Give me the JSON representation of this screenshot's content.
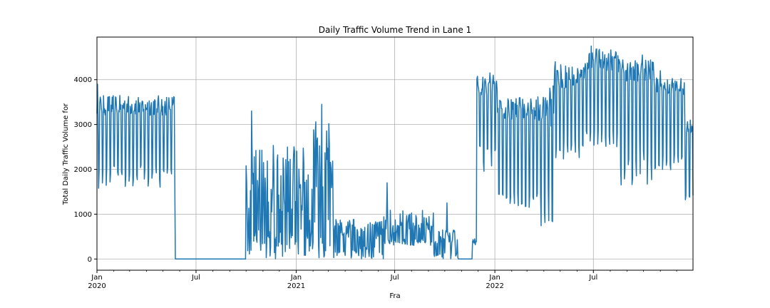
{
  "chart_data": {
    "type": "line",
    "title": "Daily Traffic Volume Trend in Lane 1",
    "xlabel": "Fra",
    "ylabel": "Total Daily Traffic Volume for",
    "xlim": [
      "2020-01-01",
      "2022-12-31"
    ],
    "ylim": [
      -250,
      4950
    ],
    "grid": true,
    "x_ticks": [
      {
        "date": "2020-01-01",
        "line1": "Jan",
        "line2": "2020"
      },
      {
        "date": "2020-07-01",
        "line1": "Jul",
        "line2": ""
      },
      {
        "date": "2021-01-01",
        "line1": "Jan",
        "line2": "2021"
      },
      {
        "date": "2021-07-01",
        "line1": "Jul",
        "line2": ""
      },
      {
        "date": "2022-01-01",
        "line1": "Jan",
        "line2": "2022"
      },
      {
        "date": "2022-07-01",
        "line1": "Jul",
        "line2": ""
      }
    ],
    "y_ticks": [
      0,
      1000,
      2000,
      3000,
      4000
    ],
    "series": [
      {
        "color": "#1f77b4",
        "segments": [
          {
            "start": "2020-01-01",
            "end": "2020-05-23",
            "mode": "weekly",
            "high": [
              3200,
              3650
            ],
            "low": [
              1550,
              2100
            ],
            "peak": 3900
          },
          {
            "start": "2020-05-24",
            "end": "2020-09-30",
            "mode": "flat",
            "value": 0
          },
          {
            "start": "2020-10-01",
            "end": "2021-01-20",
            "mode": "noisy",
            "high": [
              1000,
              2600
            ],
            "low": [
              0,
              700
            ],
            "peak": 3300
          },
          {
            "start": "2021-01-21",
            "end": "2021-03-10",
            "mode": "noisy",
            "high": [
              1500,
              3100
            ],
            "low": [
              0,
              900
            ],
            "peak": 3450
          },
          {
            "start": "2021-03-11",
            "end": "2021-06-10",
            "mode": "noisy",
            "high": [
              450,
              900
            ],
            "low": [
              0,
              300
            ],
            "peak": 2700
          },
          {
            "start": "2021-06-11",
            "end": "2021-09-10",
            "mode": "noisy",
            "high": [
              550,
              1100
            ],
            "low": [
              300,
              450
            ],
            "peak": 1700
          },
          {
            "start": "2021-09-11",
            "end": "2021-10-25",
            "mode": "noisy",
            "high": [
              350,
              650
            ],
            "low": [
              0,
              150
            ],
            "peak": 1250
          },
          {
            "start": "2021-10-26",
            "end": "2021-11-20",
            "mode": "flat",
            "value": 0
          },
          {
            "start": "2021-11-21",
            "end": "2021-11-28",
            "mode": "noisy",
            "high": [
              350,
              450
            ],
            "low": [
              300,
              400
            ],
            "peak": 450
          },
          {
            "start": "2021-11-29",
            "end": "2022-01-05",
            "mode": "weekly",
            "high": [
              3650,
              4100
            ],
            "low": [
              1900,
              2600
            ],
            "peak": 4150
          },
          {
            "start": "2022-01-06",
            "end": "2022-03-20",
            "mode": "weekly",
            "high": [
              3100,
              3600
            ],
            "low": [
              1150,
              1500
            ],
            "peak": 3600
          },
          {
            "start": "2022-03-21",
            "end": "2022-04-20",
            "mode": "weekly",
            "high": [
              2900,
              3900
            ],
            "low": [
              700,
              1600
            ],
            "peak": 3900
          },
          {
            "start": "2022-04-21",
            "end": "2022-06-15",
            "mode": "weekly",
            "high": [
              3800,
              4350
            ],
            "low": [
              2200,
              2700
            ],
            "peak": 4400
          },
          {
            "start": "2022-06-16",
            "end": "2022-08-15",
            "mode": "weekly",
            "high": [
              4200,
              4700
            ],
            "low": [
              2500,
              2900
            ],
            "peak": 4750
          },
          {
            "start": "2022-08-16",
            "end": "2022-10-20",
            "mode": "weekly",
            "high": [
              3950,
              4450
            ],
            "low": [
              1650,
              2700
            ],
            "peak": 4550
          },
          {
            "start": "2022-10-21",
            "end": "2022-12-15",
            "mode": "weekly",
            "high": [
              3650,
              4050
            ],
            "low": [
              1950,
              2400
            ],
            "peak": 4200
          },
          {
            "start": "2022-12-16",
            "end": "2022-12-31",
            "mode": "weekly",
            "high": [
              2800,
              3100
            ],
            "low": [
              1200,
              1500
            ],
            "peak": 3100
          }
        ]
      }
    ]
  }
}
